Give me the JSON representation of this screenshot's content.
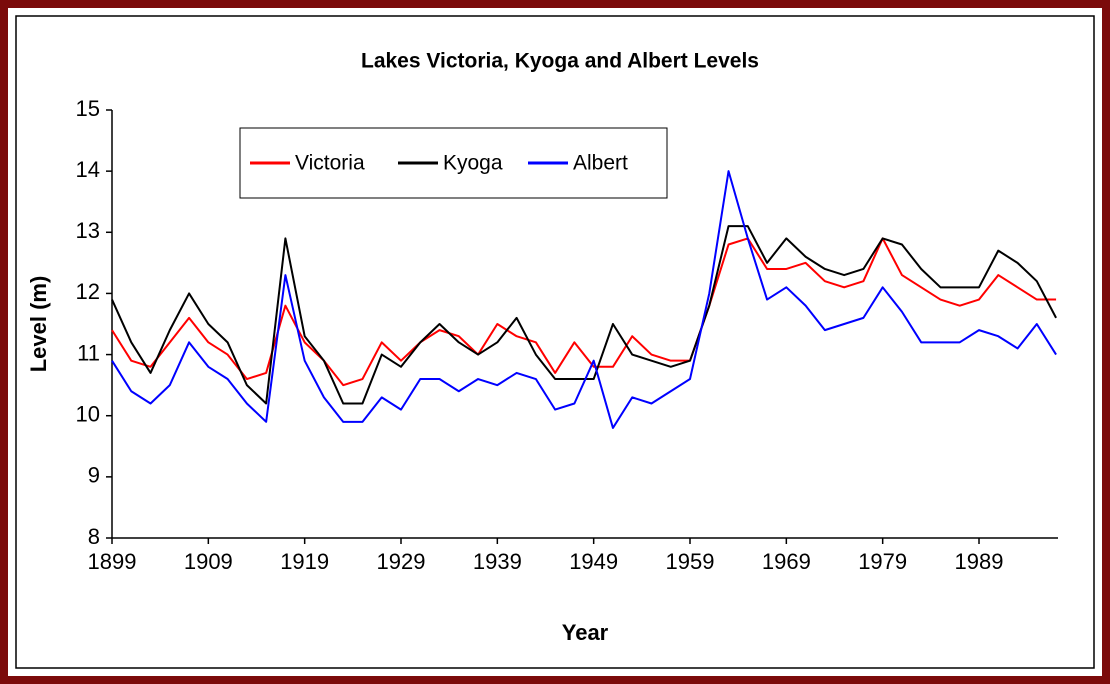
{
  "chart_data": {
    "type": "line",
    "title": "Lakes Victoria, Kyoga and Albert Levels",
    "x_label": "Year",
    "y_label": "Level (m)",
    "x": [
      1899,
      1901,
      1903,
      1905,
      1907,
      1909,
      1911,
      1913,
      1915,
      1917,
      1919,
      1921,
      1923,
      1925,
      1927,
      1929,
      1931,
      1933,
      1935,
      1937,
      1939,
      1941,
      1943,
      1945,
      1947,
      1949,
      1951,
      1953,
      1955,
      1957,
      1959,
      1961,
      1963,
      1965,
      1967,
      1969,
      1971,
      1973,
      1975,
      1977,
      1979,
      1981,
      1983,
      1985,
      1987,
      1989,
      1991,
      1993,
      1995,
      1997
    ],
    "series": [
      {
        "name": "Victoria",
        "color": "#ff0000",
        "values": [
          11.4,
          10.9,
          10.8,
          11.2,
          11.6,
          11.2,
          11.0,
          10.6,
          10.7,
          11.8,
          11.2,
          10.9,
          10.5,
          10.6,
          11.2,
          10.9,
          11.2,
          11.4,
          11.3,
          11.0,
          11.5,
          11.3,
          11.2,
          10.7,
          11.2,
          10.8,
          10.8,
          11.3,
          11.0,
          10.9,
          10.9,
          11.8,
          12.8,
          12.9,
          12.4,
          12.4,
          12.5,
          12.2,
          12.1,
          12.2,
          12.9,
          12.3,
          12.1,
          11.9,
          11.8,
          11.9,
          12.3,
          12.1,
          11.9,
          11.9
        ]
      },
      {
        "name": "Kyoga",
        "color": "#000000",
        "values": [
          11.9,
          11.2,
          10.7,
          11.4,
          12.0,
          11.5,
          11.2,
          10.5,
          10.2,
          12.9,
          11.3,
          10.9,
          10.2,
          10.2,
          11.0,
          10.8,
          11.2,
          11.5,
          11.2,
          11.0,
          11.2,
          11.6,
          11.0,
          10.6,
          10.6,
          10.6,
          11.5,
          11.0,
          10.9,
          10.8,
          10.9,
          11.8,
          13.1,
          13.1,
          12.5,
          12.9,
          12.6,
          12.4,
          12.3,
          12.4,
          12.9,
          12.8,
          12.4,
          12.1,
          12.1,
          12.1,
          12.7,
          12.5,
          12.2,
          11.6
        ]
      },
      {
        "name": "Albert",
        "color": "#0000ff",
        "values": [
          10.9,
          10.4,
          10.2,
          10.5,
          11.2,
          10.8,
          10.6,
          10.2,
          9.9,
          12.3,
          10.9,
          10.3,
          9.9,
          9.9,
          10.3,
          10.1,
          10.6,
          10.6,
          10.4,
          10.6,
          10.5,
          10.7,
          10.6,
          10.1,
          10.2,
          10.9,
          9.8,
          10.3,
          10.2,
          10.4,
          10.6,
          12.0,
          14.0,
          12.9,
          11.9,
          12.1,
          11.8,
          11.4,
          11.5,
          11.6,
          12.1,
          11.7,
          11.2,
          11.2,
          11.2,
          11.4,
          11.3,
          11.1,
          11.5,
          11.0
        ]
      }
    ],
    "xlim": [
      1899,
      1997.2
    ],
    "xticks": [
      1899,
      1909,
      1919,
      1929,
      1939,
      1949,
      1959,
      1969,
      1979,
      1989
    ],
    "ylim": [
      8,
      15
    ],
    "yticks": [
      8,
      9,
      10,
      11,
      12,
      13,
      14,
      15
    ],
    "grid": false,
    "legend": "top-left"
  }
}
